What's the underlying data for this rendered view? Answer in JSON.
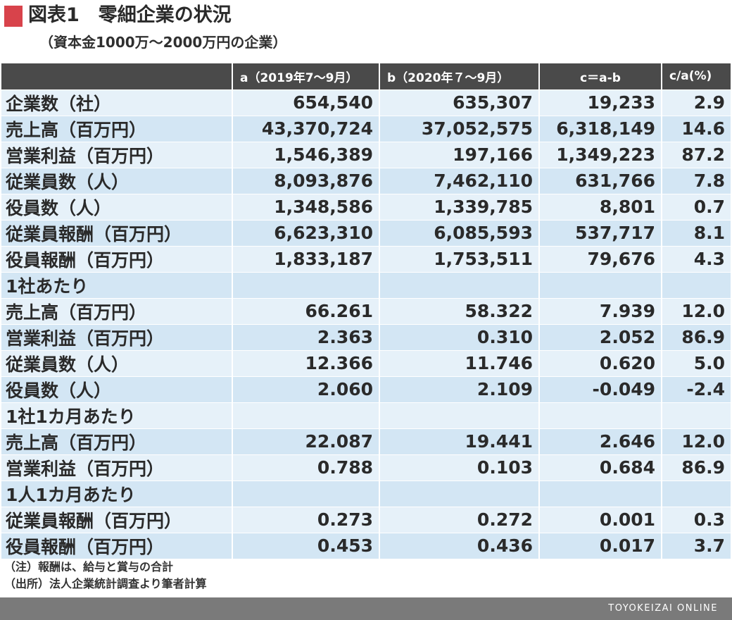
{
  "header": {
    "title": "図表1　零細企業の状況",
    "subtitle": "（資本金1000万～2000万円の企業）",
    "accent_color": "#d8434b"
  },
  "table": {
    "columns": [
      "",
      "a（2019年7～9月）",
      "b（2020年７～9月）",
      "c＝a-b",
      "c/a(%)"
    ],
    "rows": [
      [
        "企業数（社）",
        "654,540",
        "635,307",
        "19,233",
        "2.9"
      ],
      [
        "売上高（百万円）",
        "43,370,724",
        "37,052,575",
        "6,318,149",
        "14.6"
      ],
      [
        "営業利益（百万円）",
        "1,546,389",
        "197,166",
        "1,349,223",
        "87.2"
      ],
      [
        "従業員数（人）",
        "8,093,876",
        "7,462,110",
        "631,766",
        "7.8"
      ],
      [
        "役員数（人）",
        "1,348,586",
        "1,339,785",
        "8,801",
        "0.7"
      ],
      [
        "従業員報酬（百万円）",
        "6,623,310",
        "6,085,593",
        "537,717",
        "8.1"
      ],
      [
        "役員報酬（百万円）",
        "1,833,187",
        "1,753,511",
        "79,676",
        "4.3"
      ],
      [
        "1社あたり",
        "",
        "",
        "",
        ""
      ],
      [
        "売上高（百万円）",
        "66.261",
        "58.322",
        "7.939",
        "12.0"
      ],
      [
        "営業利益（百万円）",
        "2.363",
        "0.310",
        "2.052",
        "86.9"
      ],
      [
        "従業員数（人）",
        "12.366",
        "11.746",
        "0.620",
        "5.0"
      ],
      [
        "役員数（人）",
        "2.060",
        "2.109",
        "-0.049",
        "-2.4"
      ],
      [
        "1社1カ月あたり",
        "",
        "",
        "",
        ""
      ],
      [
        "売上高（百万円）",
        "22.087",
        "19.441",
        "2.646",
        "12.0"
      ],
      [
        "営業利益（百万円）",
        "0.788",
        "0.103",
        "0.684",
        "86.9"
      ],
      [
        "1人1カ月あたり",
        "",
        "",
        "",
        ""
      ],
      [
        "従業員報酬（百万円）",
        "0.273",
        "0.272",
        "0.001",
        "0.3"
      ],
      [
        "役員報酬（百万円）",
        "0.453",
        "0.436",
        "0.017",
        "3.7"
      ]
    ]
  },
  "notes": {
    "note": "（注）報酬は、給与と賞与の合計",
    "source": "（出所）法人企業統計調査より筆者計算"
  },
  "footer": {
    "brand": "TOYOKEIZAI ONLINE"
  }
}
